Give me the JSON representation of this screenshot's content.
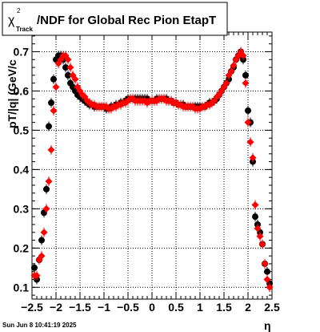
{
  "title": {
    "chi": "χ",
    "sup": "2",
    "sub": "Track",
    "rest": "/NDF for Global Rec Pion EtapT"
  },
  "timestamp": "Sun Jun  8 10:41:19 2025",
  "colors": {
    "series_black": "#000000",
    "series_red": "#ff0000",
    "grid": "#000000"
  },
  "chart_data": {
    "type": "scatter",
    "title": "χ²_Track/NDF for Global Rec Pion EtapT",
    "xlabel": "η",
    "ylabel": "pT/|q| (GeV/c",
    "xlim": [
      -2.5,
      2.5
    ],
    "ylim": [
      0.07,
      0.75
    ],
    "grid": true,
    "xticks": [
      -2.5,
      -2,
      -1.5,
      -1,
      -0.5,
      0,
      0.5,
      1,
      1.5,
      2,
      2.5
    ],
    "xtick_labels": [
      "−2.5",
      "−2",
      "−1.5",
      "−1",
      "−0.5",
      "0",
      "0.5",
      "1",
      "1.5",
      "2",
      "2.5"
    ],
    "yticks": [
      0.1,
      0.2,
      0.3,
      0.4,
      0.5,
      0.6,
      0.7
    ],
    "ytick_labels": [
      "0.1",
      "0.2",
      "0.3",
      "0.4",
      "0.5",
      "0.6",
      "0.7"
    ],
    "series": [
      {
        "marker": "circle",
        "x": [
          -2.45,
          -2.4,
          -2.35,
          -2.3,
          -2.25,
          -2.2,
          -2.15,
          -2.1,
          -2.05,
          -2.0,
          -1.95,
          -1.9,
          -1.85,
          -1.8,
          -1.75,
          -1.7,
          -1.65,
          -1.6,
          -1.55,
          -1.5,
          -1.45,
          -1.4,
          -1.35,
          -1.3,
          -1.25,
          -1.2,
          -1.15,
          -1.1,
          -1.05,
          -1.0,
          -0.95,
          -0.9,
          -0.85,
          -0.8,
          -0.75,
          -0.7,
          -0.65,
          -0.6,
          -0.55,
          -0.5,
          -0.45,
          -0.4,
          -0.35,
          -0.3,
          -0.25,
          -0.2,
          -0.15,
          -0.1,
          -0.05,
          0.0,
          0.05,
          0.1,
          0.15,
          0.2,
          0.25,
          0.3,
          0.35,
          0.4,
          0.45,
          0.5,
          0.55,
          0.6,
          0.65,
          0.7,
          0.75,
          0.8,
          0.85,
          0.9,
          0.95,
          1.0,
          1.05,
          1.1,
          1.15,
          1.2,
          1.25,
          1.3,
          1.35,
          1.4,
          1.45,
          1.5,
          1.55,
          1.6,
          1.65,
          1.7,
          1.75,
          1.8,
          1.85,
          1.9,
          1.95,
          2.0,
          2.05,
          2.1,
          2.15,
          2.2,
          2.25,
          2.3,
          2.35,
          2.4,
          2.45
        ],
        "y": [
          0.15,
          0.12,
          0.17,
          0.22,
          0.29,
          0.35,
          0.51,
          0.57,
          0.63,
          0.68,
          0.69,
          0.69,
          0.68,
          0.66,
          0.64,
          0.62,
          0.61,
          0.6,
          0.59,
          0.585,
          0.58,
          0.575,
          0.57,
          0.565,
          0.565,
          0.56,
          0.56,
          0.56,
          0.56,
          0.56,
          0.555,
          0.555,
          0.56,
          0.56,
          0.565,
          0.565,
          0.57,
          0.57,
          0.575,
          0.58,
          0.58,
          0.58,
          0.58,
          0.58,
          0.58,
          0.58,
          0.58,
          0.58,
          0.575,
          0.575,
          0.575,
          0.58,
          0.58,
          0.58,
          0.58,
          0.58,
          0.575,
          0.575,
          0.57,
          0.57,
          0.565,
          0.565,
          0.565,
          0.56,
          0.56,
          0.56,
          0.56,
          0.56,
          0.56,
          0.56,
          0.56,
          0.56,
          0.565,
          0.57,
          0.57,
          0.575,
          0.58,
          0.59,
          0.6,
          0.61,
          0.62,
          0.63,
          0.65,
          0.66,
          0.68,
          0.69,
          0.7,
          0.68,
          0.64,
          0.55,
          0.52,
          0.42,
          0.28,
          0.26,
          0.24,
          0.21,
          0.16,
          0.14,
          0.11
        ]
      },
      {
        "marker": "diamond",
        "x": [
          -2.45,
          -2.4,
          -2.35,
          -2.3,
          -2.25,
          -2.2,
          -2.15,
          -2.1,
          -2.05,
          -2.0,
          -1.95,
          -1.9,
          -1.85,
          -1.8,
          -1.75,
          -1.7,
          -1.65,
          -1.6,
          -1.55,
          -1.5,
          -1.45,
          -1.4,
          -1.35,
          -1.3,
          -1.25,
          -1.2,
          -1.15,
          -1.1,
          -1.05,
          -1.0,
          -0.95,
          -0.9,
          -0.85,
          -0.8,
          -0.75,
          -0.7,
          -0.65,
          -0.6,
          -0.55,
          -0.5,
          -0.45,
          -0.4,
          -0.35,
          -0.3,
          -0.25,
          -0.2,
          -0.15,
          -0.1,
          -0.05,
          0.0,
          0.05,
          0.1,
          0.15,
          0.2,
          0.25,
          0.3,
          0.35,
          0.4,
          0.45,
          0.5,
          0.55,
          0.6,
          0.65,
          0.7,
          0.75,
          0.8,
          0.85,
          0.9,
          0.95,
          1.0,
          1.05,
          1.1,
          1.15,
          1.2,
          1.25,
          1.3,
          1.35,
          1.4,
          1.45,
          1.5,
          1.55,
          1.6,
          1.65,
          1.7,
          1.75,
          1.8,
          1.85,
          1.9,
          1.95,
          2.0,
          2.05,
          2.1,
          2.15,
          2.2,
          2.25,
          2.3,
          2.35,
          2.4,
          2.45
        ],
        "y": [
          0.13,
          0.13,
          0.17,
          0.18,
          0.24,
          0.3,
          0.37,
          0.45,
          0.55,
          0.61,
          0.67,
          0.68,
          0.69,
          0.69,
          0.68,
          0.66,
          0.64,
          0.63,
          0.61,
          0.6,
          0.59,
          0.585,
          0.575,
          0.57,
          0.565,
          0.565,
          0.56,
          0.56,
          0.56,
          0.56,
          0.56,
          0.555,
          0.555,
          0.56,
          0.56,
          0.565,
          0.565,
          0.57,
          0.57,
          0.575,
          0.58,
          0.58,
          0.575,
          0.575,
          0.575,
          0.575,
          0.575,
          0.57,
          0.575,
          0.575,
          0.575,
          0.575,
          0.58,
          0.58,
          0.58,
          0.575,
          0.575,
          0.575,
          0.57,
          0.57,
          0.565,
          0.565,
          0.56,
          0.56,
          0.56,
          0.56,
          0.56,
          0.555,
          0.555,
          0.555,
          0.56,
          0.56,
          0.565,
          0.565,
          0.57,
          0.575,
          0.585,
          0.59,
          0.6,
          0.61,
          0.62,
          0.64,
          0.65,
          0.665,
          0.68,
          0.69,
          0.7,
          0.69,
          0.62,
          0.52,
          0.47,
          0.43,
          0.31,
          0.25,
          0.23,
          0.21,
          0.16,
          0.12,
          0.1
        ]
      }
    ]
  }
}
